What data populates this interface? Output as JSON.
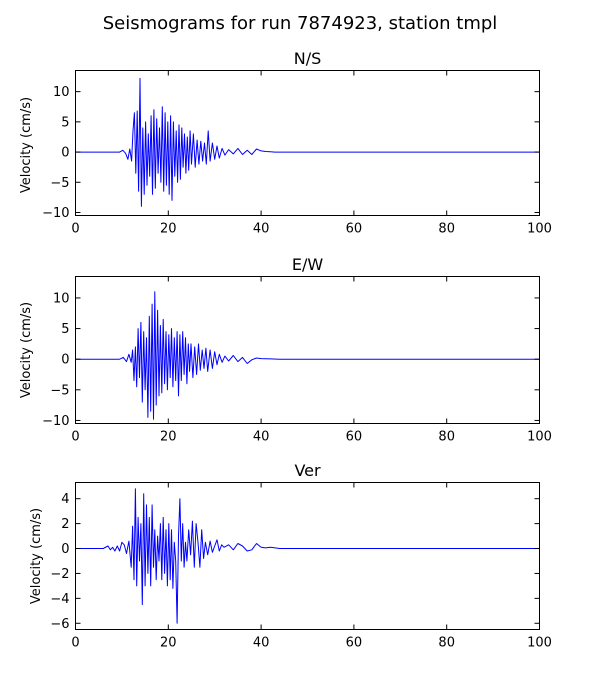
{
  "figure": {
    "suptitle": "Seismograms for run 7874923, station tmpl"
  },
  "chart_data": [
    {
      "type": "line",
      "title": "N/S",
      "xlabel": "",
      "ylabel": "Velocity (cm/s)",
      "xlim": [
        0,
        100
      ],
      "ylim": [
        -10.5,
        13.5
      ],
      "xticks": [
        "0",
        "20",
        "40",
        "60",
        "80",
        "100"
      ],
      "yticks": [
        "10",
        "5",
        "0",
        "−5",
        "−10"
      ],
      "ytick_values": [
        10,
        5,
        0,
        -5,
        -10
      ],
      "line_color": "#0000ff",
      "x": [
        0,
        9.5,
        10.2,
        10.8,
        11.3,
        11.7,
        12.1,
        12.4,
        12.7,
        13.0,
        13.3,
        13.6,
        13.9,
        14.2,
        14.5,
        14.8,
        15.1,
        15.4,
        15.7,
        16.0,
        16.3,
        16.6,
        16.9,
        17.2,
        17.5,
        17.8,
        18.1,
        18.4,
        18.7,
        19.0,
        19.3,
        19.6,
        19.9,
        20.2,
        20.5,
        20.8,
        21.1,
        21.4,
        21.7,
        22.0,
        22.3,
        22.6,
        22.9,
        23.2,
        23.5,
        23.8,
        24.1,
        24.4,
        24.7,
        25.0,
        25.4,
        25.8,
        26.2,
        26.6,
        27.0,
        27.4,
        27.8,
        28.2,
        28.6,
        29.0,
        29.5,
        30.0,
        30.5,
        31.0,
        31.6,
        32.2,
        33.0,
        34.0,
        35.0,
        36.0,
        37.0,
        38.0,
        39.0,
        40.0,
        41.0,
        42.0,
        43.0,
        44.0,
        46.0,
        100
      ],
      "y": [
        0,
        0,
        0.3,
        -0.2,
        -1.2,
        0.5,
        -1.5,
        3.5,
        6.5,
        -3.5,
        6.8,
        -6.5,
        12.2,
        -9.0,
        4.0,
        -7.0,
        5.0,
        -5.5,
        3.0,
        -4.0,
        6.0,
        -7.0,
        7.0,
        -6.0,
        5.5,
        -3.5,
        4.0,
        -5.0,
        7.5,
        -6.5,
        6.5,
        -5.5,
        5.0,
        -7.0,
        6.0,
        -8.0,
        5.0,
        -4.0,
        3.5,
        -5.0,
        4.5,
        -4.5,
        4.0,
        -2.5,
        3.0,
        -3.5,
        2.5,
        -3.0,
        3.5,
        -2.0,
        3.0,
        -2.5,
        2.0,
        -2.0,
        1.8,
        -1.5,
        1.5,
        -2.0,
        3.5,
        -1.5,
        1.5,
        -1.2,
        1.0,
        -1.0,
        0.6,
        -0.5,
        0.4,
        -0.3,
        0.6,
        -0.4,
        0.3,
        -0.4,
        0.5,
        0.2,
        0.1,
        0.05,
        0,
        0,
        0,
        0
      ]
    },
    {
      "type": "line",
      "title": "E/W",
      "xlabel": "",
      "ylabel": "Velocity (cm/s)",
      "xlim": [
        0,
        100
      ],
      "ylim": [
        -10.5,
        13.5
      ],
      "xticks": [
        "0",
        "20",
        "40",
        "60",
        "80",
        "100"
      ],
      "yticks": [
        "10",
        "5",
        "0",
        "−5",
        "−10"
      ],
      "ytick_values": [
        10,
        5,
        0,
        -5,
        -10
      ],
      "line_color": "#0000ff",
      "x": [
        0,
        9.5,
        10.3,
        11.0,
        11.5,
        12.0,
        12.3,
        12.6,
        12.9,
        13.2,
        13.5,
        13.8,
        14.1,
        14.4,
        14.7,
        15.0,
        15.3,
        15.6,
        15.9,
        16.2,
        16.5,
        16.8,
        17.1,
        17.4,
        17.7,
        18.0,
        18.3,
        18.6,
        18.9,
        19.2,
        19.5,
        19.8,
        20.1,
        20.4,
        20.7,
        21.0,
        21.3,
        21.6,
        21.9,
        22.2,
        22.5,
        22.8,
        23.1,
        23.4,
        23.7,
        24.0,
        24.3,
        24.6,
        24.9,
        25.3,
        25.7,
        26.1,
        26.5,
        26.9,
        27.3,
        27.7,
        28.1,
        28.5,
        29.0,
        29.5,
        30.0,
        30.5,
        31.0,
        31.6,
        32.2,
        33.0,
        34.0,
        35.0,
        36.0,
        37.0,
        38.0,
        39.0,
        40.0,
        42.0,
        44.0,
        100
      ],
      "y": [
        0,
        0,
        0.3,
        -0.4,
        0.8,
        -0.5,
        1.5,
        -3.5,
        2.0,
        -4.5,
        5.0,
        -3.0,
        6.0,
        -7.0,
        4.5,
        -5.0,
        3.5,
        -9.5,
        7.0,
        -8.5,
        9.0,
        -9.8,
        11.0,
        -7.5,
        8.0,
        -6.0,
        5.5,
        -5.5,
        6.5,
        -4.0,
        4.5,
        -5.0,
        4.0,
        -3.0,
        5.0,
        -4.5,
        3.5,
        -3.5,
        4.5,
        -6.0,
        4.0,
        -3.5,
        4.5,
        -2.5,
        3.5,
        -4.0,
        2.5,
        -2.0,
        2.5,
        -3.0,
        2.0,
        -2.5,
        2.5,
        -1.8,
        1.5,
        -1.5,
        1.8,
        -2.0,
        1.5,
        -1.5,
        1.2,
        -0.9,
        0.8,
        -0.5,
        0.5,
        -0.3,
        0.6,
        -0.4,
        0.3,
        -0.7,
        -0.1,
        0.2,
        0.1,
        0.05,
        0,
        0
      ]
    },
    {
      "type": "line",
      "title": "Ver",
      "xlabel": "",
      "ylabel": "Velocity (cm/s)",
      "xlim": [
        0,
        100
      ],
      "ylim": [
        -6.5,
        5.3
      ],
      "xticks": [
        "0",
        "20",
        "40",
        "60",
        "80",
        "100"
      ],
      "yticks": [
        "4",
        "2",
        "0",
        "−2",
        "−4",
        "−6"
      ],
      "ytick_values": [
        4,
        2,
        0,
        -2,
        -4,
        -6
      ],
      "line_color": "#0000ff",
      "x": [
        0,
        6.0,
        7.0,
        7.5,
        8.0,
        8.5,
        9.0,
        9.5,
        10.0,
        10.5,
        11.0,
        11.5,
        12.0,
        12.3,
        12.6,
        12.9,
        13.2,
        13.5,
        13.8,
        14.1,
        14.4,
        14.7,
        15.0,
        15.3,
        15.6,
        15.9,
        16.2,
        16.5,
        16.8,
        17.1,
        17.4,
        17.7,
        18.0,
        18.3,
        18.6,
        18.9,
        19.2,
        19.5,
        19.8,
        20.1,
        20.4,
        20.7,
        21.0,
        21.3,
        21.6,
        21.9,
        22.2,
        22.5,
        22.8,
        23.1,
        23.4,
        23.7,
        24.0,
        24.4,
        24.8,
        25.2,
        25.6,
        26.0,
        26.4,
        26.8,
        27.2,
        27.6,
        28.0,
        28.5,
        29.0,
        29.5,
        30.0,
        30.5,
        31.0,
        31.5,
        32.0,
        33.0,
        34.0,
        35.0,
        36.0,
        37.0,
        38.0,
        39.0,
        40.0,
        41.0,
        42.0,
        44.0,
        46.0,
        100
      ],
      "y": [
        0,
        0,
        0.2,
        -0.1,
        0.1,
        -0.2,
        0.2,
        -0.2,
        0.5,
        0.3,
        -0.4,
        0.6,
        -1.5,
        1.8,
        -2.5,
        4.8,
        -3.0,
        2.5,
        -1.0,
        2.0,
        -4.5,
        4.4,
        -3.0,
        3.5,
        -2.0,
        2.5,
        -3.0,
        3.5,
        -1.5,
        1.5,
        -2.5,
        1.0,
        -1.0,
        2.0,
        -2.5,
        2.5,
        -2.0,
        1.5,
        -3.0,
        2.0,
        -2.5,
        1.5,
        -3.2,
        0.5,
        -1.0,
        -6.0,
        1.0,
        4.0,
        -1.0,
        2.0,
        -1.5,
        0.5,
        -1.0,
        1.5,
        -0.5,
        2.2,
        -1.5,
        2.0,
        0.5,
        -1.5,
        1.5,
        -0.8,
        0.5,
        -0.5,
        0.6,
        -0.3,
        0.2,
        0.7,
        -0.2,
        0.3,
        0.1,
        0.3,
        -0.1,
        0.4,
        0.2,
        -0.2,
        -0.1,
        0.4,
        0.1,
        0.05,
        0.1,
        0,
        0,
        0
      ]
    }
  ]
}
